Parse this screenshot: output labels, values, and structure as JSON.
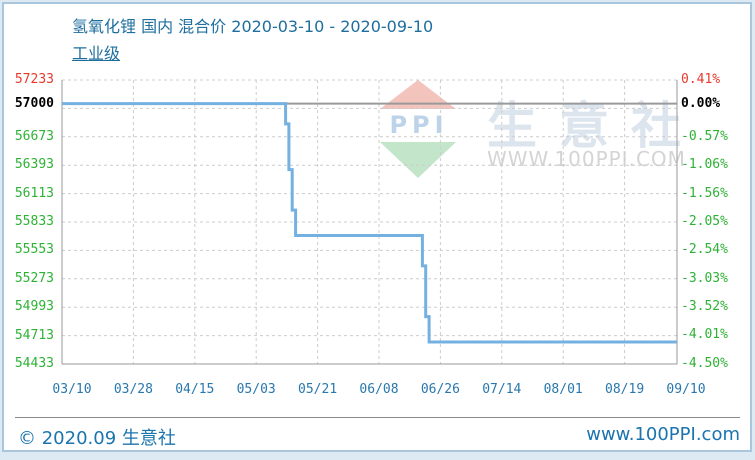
{
  "title": {
    "line1": "氢氧化锂 国内 混合价 2020-03-10 - 2020-09-10",
    "line2": "工业级"
  },
  "watermark": {
    "brand_text": "生意社",
    "site_text": "WWW.100PPI.COM",
    "logo_text": "PPI"
  },
  "footer": {
    "left": "© 2020.09 生意社",
    "right": "www.100PPI.com"
  },
  "colors": {
    "title_blue": "#1e6e9e",
    "axis_blue": "#2878ae",
    "footer_blue": "#1a74ae",
    "label_red": "#e9392c",
    "label_black": "#000000",
    "label_green": "#2eb235",
    "line_blue": "#74b0e0",
    "base_line_gray": "#9a9a9a",
    "grid_gray": "#cccccc",
    "plot_border": "#999999",
    "frame_border": "#a9c6dc",
    "page_bg": "#dde9f3"
  },
  "chart_data": {
    "type": "line",
    "title": "氢氧化锂 国内 混合价 2020-03-10 - 2020-09-10 工业级",
    "legend_position": "none",
    "grid": true,
    "base_price": 57000,
    "ylim": [
      54433,
      57233
    ],
    "x_range": [
      "2020-03-10",
      "2020-09-10"
    ],
    "left_axis_labels": [
      {
        "text": "57233",
        "value": 57233,
        "color": "#e9392c",
        "bold": false
      },
      {
        "text": "57000",
        "value": 57000,
        "color": "#000000",
        "bold": true
      },
      {
        "text": "56673",
        "value": 56673,
        "color": "#2eb235",
        "bold": false
      },
      {
        "text": "56393",
        "value": 56393,
        "color": "#2eb235",
        "bold": false
      },
      {
        "text": "56113",
        "value": 56113,
        "color": "#2eb235",
        "bold": false
      },
      {
        "text": "55833",
        "value": 55833,
        "color": "#2eb235",
        "bold": false
      },
      {
        "text": "55553",
        "value": 55553,
        "color": "#2eb235",
        "bold": false
      },
      {
        "text": "55273",
        "value": 55273,
        "color": "#2eb235",
        "bold": false
      },
      {
        "text": "54993",
        "value": 54993,
        "color": "#2eb235",
        "bold": false
      },
      {
        "text": "54713",
        "value": 54713,
        "color": "#2eb235",
        "bold": false
      },
      {
        "text": "54433",
        "value": 54433,
        "color": "#2eb235",
        "bold": false
      }
    ],
    "right_axis_labels": [
      {
        "text": "0.41%",
        "pct": 0.41,
        "color": "#e9392c",
        "bold": false
      },
      {
        "text": "0.00%",
        "pct": 0.0,
        "color": "#000000",
        "bold": true
      },
      {
        "text": "-0.57%",
        "pct": -0.57,
        "color": "#2eb235",
        "bold": false
      },
      {
        "text": "-1.06%",
        "pct": -1.06,
        "color": "#2eb235",
        "bold": false
      },
      {
        "text": "-1.56%",
        "pct": -1.56,
        "color": "#2eb235",
        "bold": false
      },
      {
        "text": "-2.05%",
        "pct": -2.05,
        "color": "#2eb235",
        "bold": false
      },
      {
        "text": "-2.54%",
        "pct": -2.54,
        "color": "#2eb235",
        "bold": false
      },
      {
        "text": "-3.03%",
        "pct": -3.03,
        "color": "#2eb235",
        "bold": false
      },
      {
        "text": "-3.52%",
        "pct": -3.52,
        "color": "#2eb235",
        "bold": false
      },
      {
        "text": "-4.01%",
        "pct": -4.01,
        "color": "#2eb235",
        "bold": false
      },
      {
        "text": "-4.50%",
        "pct": -4.5,
        "color": "#2eb235",
        "bold": false
      }
    ],
    "x_tick_labels": [
      "03/10",
      "03/28",
      "04/15",
      "05/03",
      "05/21",
      "06/08",
      "06/26",
      "07/14",
      "08/01",
      "08/19",
      "09/10"
    ],
    "series": [
      {
        "name": "氢氧化锂 国内 混合价 工业级",
        "step": "after",
        "points": [
          [
            "2020-03-10",
            57000
          ],
          [
            "2020-05-12",
            57000
          ],
          [
            "2020-05-13",
            56800
          ],
          [
            "2020-05-14",
            56350
          ],
          [
            "2020-05-15",
            55950
          ],
          [
            "2020-05-16",
            55700
          ],
          [
            "2020-06-22",
            55700
          ],
          [
            "2020-06-23",
            55400
          ],
          [
            "2020-06-24",
            54900
          ],
          [
            "2020-06-25",
            54650
          ],
          [
            "2020-09-10",
            54650
          ]
        ]
      }
    ]
  }
}
